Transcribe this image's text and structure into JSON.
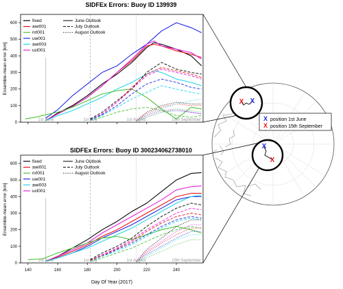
{
  "figure_xlabel": "Day Of Year (2017)",
  "legend_position": "position 1st June",
  "legend_position2": "position 15th September",
  "marker_symbol": "X",
  "outlook_styles": [
    {
      "name": "June Outlook",
      "dash": "solid"
    },
    {
      "name": "July Outlook",
      "dash": "dashed"
    },
    {
      "name": "August Outlook",
      "dash": "dotted"
    }
  ],
  "colors": {
    "fixed": "#000000",
    "awi001": "#e8121b",
    "nrl001": "#4dc23a",
    "uw001": "#1f28e0",
    "awi003": "#28d6e6",
    "ucl001": "#e421d8",
    "pos_june": "#1f28e0",
    "pos_sep": "#e8121b"
  },
  "chart_data": [
    {
      "type": "line",
      "title": "SIDFEx Errors: Buoy ID 139939",
      "ylabel": "Ensemble-mean error [km]",
      "xlim": [
        135,
        258
      ],
      "ylim": [
        0,
        650
      ],
      "yticks": [
        0,
        100,
        200,
        300,
        400,
        500,
        600
      ],
      "xticks": [
        140,
        160,
        180,
        200,
        220,
        240
      ],
      "date_markers": [
        {
          "x": 152,
          "label": "1st June"
        },
        {
          "x": 182,
          "label": "1st July"
        },
        {
          "x": 213,
          "label": "1st August"
        },
        {
          "x": 258,
          "label": "15th September"
        }
      ],
      "grid": false,
      "legend": "top-left",
      "series": [
        {
          "name": "uw001",
          "outlook": "June Outlook",
          "x": [
            152,
            160,
            170,
            180,
            190,
            200,
            210,
            220,
            225,
            230,
            240,
            250,
            257
          ],
          "y": [
            25,
            75,
            160,
            230,
            300,
            340,
            410,
            470,
            510,
            550,
            600,
            570,
            540
          ]
        },
        {
          "name": "fixed",
          "outlook": "June Outlook",
          "x": [
            152,
            160,
            170,
            180,
            190,
            200,
            210,
            220,
            225,
            230,
            240,
            250,
            257
          ],
          "y": [
            10,
            55,
            100,
            160,
            230,
            290,
            360,
            450,
            480,
            470,
            440,
            400,
            340
          ]
        },
        {
          "name": "awi001",
          "outlook": "June Outlook",
          "x": [
            152,
            160,
            170,
            180,
            190,
            200,
            210,
            220,
            225,
            230,
            240,
            250,
            257
          ],
          "y": [
            10,
            50,
            95,
            150,
            220,
            300,
            370,
            460,
            470,
            460,
            430,
            410,
            390
          ]
        },
        {
          "name": "ucl001",
          "outlook": "June Outlook",
          "x": [
            152,
            160,
            170,
            180,
            190,
            200,
            210,
            220,
            225,
            230,
            240,
            250,
            257
          ],
          "y": [
            10,
            50,
            95,
            150,
            220,
            300,
            380,
            470,
            490,
            460,
            440,
            420,
            380
          ]
        },
        {
          "name": "awi003",
          "outlook": "June Outlook",
          "x": [
            152,
            160,
            170,
            180,
            190,
            200,
            210,
            220,
            225,
            230,
            240,
            250,
            257
          ],
          "y": [
            10,
            40,
            70,
            110,
            150,
            200,
            240,
            290,
            310,
            300,
            260,
            240,
            220
          ]
        },
        {
          "name": "nrl001",
          "outlook": "June Outlook",
          "x": [
            138,
            145,
            152,
            160,
            170,
            180,
            190,
            200,
            210,
            220,
            230,
            240,
            250,
            257
          ],
          "y": [
            20,
            30,
            45,
            60,
            90,
            130,
            170,
            190,
            200,
            150,
            80,
            20,
            90,
            80
          ]
        },
        {
          "name": "fixed",
          "outlook": "July Outlook",
          "x": [
            182,
            190,
            200,
            210,
            220,
            230,
            240,
            250,
            257
          ],
          "y": [
            20,
            60,
            130,
            200,
            300,
            360,
            320,
            300,
            290
          ]
        },
        {
          "name": "awi001",
          "outlook": "July Outlook",
          "x": [
            182,
            190,
            200,
            210,
            220,
            230,
            240,
            250,
            257
          ],
          "y": [
            15,
            50,
            120,
            210,
            290,
            330,
            310,
            290,
            270
          ]
        },
        {
          "name": "ucl001",
          "outlook": "July Outlook",
          "x": [
            182,
            190,
            200,
            210,
            220,
            230,
            240,
            250,
            257
          ],
          "y": [
            15,
            50,
            120,
            200,
            280,
            320,
            300,
            280,
            260
          ]
        },
        {
          "name": "uw001",
          "outlook": "July Outlook",
          "x": [
            182,
            190,
            200,
            210,
            220,
            230,
            240,
            250,
            257
          ],
          "y": [
            15,
            45,
            100,
            170,
            230,
            260,
            240,
            210,
            200
          ]
        },
        {
          "name": "awi003",
          "outlook": "July Outlook",
          "x": [
            182,
            190,
            200,
            210,
            220,
            230,
            240,
            250,
            257
          ],
          "y": [
            10,
            40,
            90,
            140,
            180,
            220,
            200,
            180,
            170
          ]
        },
        {
          "name": "nrl001",
          "outlook": "July Outlook",
          "x": [
            182,
            190,
            200,
            210,
            220,
            230,
            240,
            250,
            257
          ],
          "y": [
            10,
            30,
            60,
            80,
            90,
            70,
            40,
            30,
            40
          ]
        },
        {
          "name": "fixed",
          "outlook": "August Outlook",
          "x": [
            213,
            220,
            230,
            240,
            250,
            257
          ],
          "y": [
            10,
            60,
            100,
            120,
            110,
            110
          ]
        },
        {
          "name": "awi001",
          "outlook": "August Outlook",
          "x": [
            213,
            220,
            230,
            240,
            250,
            257
          ],
          "y": [
            10,
            50,
            90,
            110,
            100,
            100
          ]
        },
        {
          "name": "ucl001",
          "outlook": "August Outlook",
          "x": [
            213,
            220,
            230,
            240,
            250,
            257
          ],
          "y": [
            10,
            40,
            70,
            80,
            60,
            50
          ]
        },
        {
          "name": "uw001",
          "outlook": "August Outlook",
          "x": [
            213,
            220,
            230,
            240,
            250,
            257
          ],
          "y": [
            5,
            30,
            60,
            70,
            60,
            50
          ]
        },
        {
          "name": "awi003",
          "outlook": "August Outlook",
          "x": [
            213,
            220,
            230,
            240,
            250,
            257
          ],
          "y": [
            5,
            40,
            80,
            110,
            130,
            140
          ]
        },
        {
          "name": "nrl001",
          "outlook": "August Outlook",
          "x": [
            213,
            220,
            230,
            240,
            250,
            257
          ],
          "y": [
            5,
            30,
            60,
            80,
            70,
            60
          ]
        }
      ]
    },
    {
      "type": "line",
      "title": "SIDFEx Errors: Buoy ID 300234062738010",
      "ylabel": "Ensemble-mean error [km]",
      "xlim": [
        135,
        258
      ],
      "ylim": [
        0,
        650
      ],
      "yticks": [
        0,
        100,
        200,
        300,
        400,
        500,
        600
      ],
      "xticks": [
        140,
        160,
        180,
        200,
        220,
        240
      ],
      "date_markers": [
        {
          "x": 152,
          "label": "1st June"
        },
        {
          "x": 182,
          "label": "1st July"
        },
        {
          "x": 213,
          "label": "1st August"
        },
        {
          "x": 258,
          "label": "15th September"
        }
      ],
      "grid": false,
      "legend": "top-left",
      "series": [
        {
          "name": "fixed",
          "outlook": "June Outlook",
          "x": [
            152,
            160,
            170,
            180,
            190,
            200,
            210,
            220,
            230,
            240,
            250,
            257
          ],
          "y": [
            10,
            40,
            90,
            140,
            200,
            250,
            310,
            360,
            430,
            500,
            540,
            545
          ]
        },
        {
          "name": "ucl001",
          "outlook": "June Outlook",
          "x": [
            152,
            160,
            170,
            180,
            190,
            200,
            210,
            220,
            230,
            240,
            250,
            257
          ],
          "y": [
            10,
            40,
            80,
            120,
            180,
            230,
            280,
            330,
            380,
            440,
            460,
            465
          ]
        },
        {
          "name": "awi001",
          "outlook": "June Outlook",
          "x": [
            152,
            160,
            170,
            180,
            190,
            200,
            210,
            220,
            230,
            240,
            250,
            257
          ],
          "y": [
            10,
            35,
            70,
            110,
            160,
            200,
            250,
            300,
            350,
            400,
            420,
            420
          ]
        },
        {
          "name": "uw001",
          "outlook": "June Outlook",
          "x": [
            152,
            160,
            170,
            180,
            190,
            200,
            210,
            220,
            230,
            240,
            250,
            257
          ],
          "y": [
            10,
            30,
            60,
            100,
            150,
            190,
            230,
            280,
            330,
            380,
            400,
            400
          ]
        },
        {
          "name": "awi003",
          "outlook": "June Outlook",
          "x": [
            152,
            160,
            170,
            180,
            190,
            200,
            210,
            220,
            230,
            240,
            250,
            257
          ],
          "y": [
            10,
            30,
            60,
            90,
            130,
            170,
            210,
            260,
            310,
            360,
            400,
            410
          ]
        },
        {
          "name": "nrl001",
          "outlook": "June Outlook",
          "x": [
            140,
            150,
            160,
            170,
            180,
            190,
            200,
            210,
            220,
            230,
            240,
            250,
            257
          ],
          "y": [
            20,
            25,
            60,
            90,
            120,
            150,
            160,
            140,
            170,
            200,
            220,
            200,
            180
          ]
        },
        {
          "name": "fixed",
          "outlook": "July Outlook",
          "x": [
            182,
            190,
            200,
            210,
            220,
            230,
            240,
            250,
            257
          ],
          "y": [
            20,
            60,
            100,
            150,
            220,
            280,
            330,
            360,
            350
          ]
        },
        {
          "name": "ucl001",
          "outlook": "July Outlook",
          "x": [
            182,
            190,
            200,
            210,
            220,
            230,
            240,
            250,
            257
          ],
          "y": [
            15,
            50,
            90,
            140,
            200,
            250,
            300,
            330,
            320
          ]
        },
        {
          "name": "awi001",
          "outlook": "July Outlook",
          "x": [
            182,
            190,
            200,
            210,
            220,
            230,
            240,
            250,
            257
          ],
          "y": [
            15,
            45,
            85,
            130,
            190,
            240,
            280,
            300,
            290
          ]
        },
        {
          "name": "uw001",
          "outlook": "July Outlook",
          "x": [
            182,
            190,
            200,
            210,
            220,
            230,
            240,
            250,
            257
          ],
          "y": [
            10,
            40,
            80,
            120,
            170,
            220,
            260,
            280,
            270
          ]
        },
        {
          "name": "awi003",
          "outlook": "July Outlook",
          "x": [
            182,
            190,
            200,
            210,
            220,
            230,
            240,
            250,
            257
          ],
          "y": [
            10,
            40,
            70,
            110,
            160,
            210,
            250,
            270,
            260
          ]
        },
        {
          "name": "nrl001",
          "outlook": "July Outlook",
          "x": [
            182,
            190,
            200,
            210,
            220,
            230,
            240,
            250,
            257
          ],
          "y": [
            10,
            30,
            60,
            90,
            130,
            170,
            200,
            220,
            210
          ]
        },
        {
          "name": "fixed",
          "outlook": "August Outlook",
          "x": [
            213,
            220,
            230,
            240,
            250,
            257
          ],
          "y": [
            10,
            80,
            150,
            220,
            260,
            260
          ]
        },
        {
          "name": "ucl001",
          "outlook": "August Outlook",
          "x": [
            213,
            220,
            230,
            240,
            250,
            257
          ],
          "y": [
            10,
            70,
            130,
            190,
            230,
            230
          ]
        },
        {
          "name": "awi001",
          "outlook": "August Outlook",
          "x": [
            213,
            220,
            230,
            240,
            250,
            257
          ],
          "y": [
            10,
            60,
            120,
            170,
            210,
            210
          ]
        },
        {
          "name": "uw001",
          "outlook": "August Outlook",
          "x": [
            213,
            220,
            230,
            240,
            250,
            257
          ],
          "y": [
            5,
            50,
            100,
            150,
            190,
            190
          ]
        },
        {
          "name": "awi003",
          "outlook": "August Outlook",
          "x": [
            213,
            220,
            230,
            240,
            250,
            257
          ],
          "y": [
            5,
            40,
            90,
            140,
            170,
            170
          ]
        },
        {
          "name": "nrl001",
          "outlook": "August Outlook",
          "x": [
            213,
            220,
            230,
            240,
            250,
            257
          ],
          "y": [
            5,
            30,
            70,
            110,
            140,
            140
          ]
        }
      ]
    }
  ]
}
